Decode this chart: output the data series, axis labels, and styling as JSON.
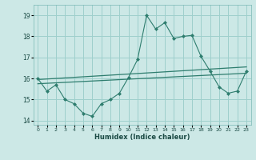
{
  "x": [
    0,
    1,
    2,
    3,
    4,
    5,
    6,
    7,
    8,
    9,
    10,
    11,
    12,
    13,
    14,
    15,
    16,
    17,
    18,
    19,
    20,
    21,
    22,
    23
  ],
  "main_y": [
    16.0,
    15.4,
    15.7,
    15.0,
    14.8,
    14.35,
    14.2,
    14.8,
    15.0,
    15.3,
    16.05,
    16.9,
    19.0,
    18.35,
    18.65,
    17.9,
    18.0,
    18.05,
    17.05,
    16.35,
    15.6,
    15.3,
    15.4,
    16.35
  ],
  "trend1_x": [
    0,
    23
  ],
  "trend1_y": [
    15.75,
    16.25
  ],
  "trend2_x": [
    0,
    23
  ],
  "trend2_y": [
    15.95,
    16.55
  ],
  "line_color": "#2e7d6e",
  "background_color": "#cce8e6",
  "grid_color": "#9ecfcc",
  "xlabel": "Humidex (Indice chaleur)",
  "ylim": [
    13.8,
    19.5
  ],
  "xlim": [
    -0.5,
    23.5
  ],
  "yticks": [
    14,
    15,
    16,
    17,
    18,
    19
  ],
  "xtick_labels": [
    "0",
    "1",
    "2",
    "3",
    "4",
    "5",
    "6",
    "7",
    "8",
    "9",
    "10",
    "11",
    "12",
    "13",
    "14",
    "15",
    "16",
    "17",
    "18",
    "19",
    "20",
    "21",
    "22",
    "23"
  ]
}
